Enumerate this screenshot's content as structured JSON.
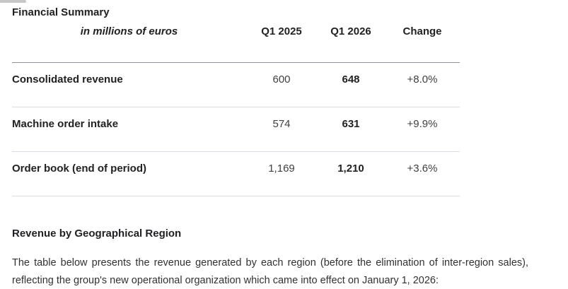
{
  "sections": {
    "financial_summary_title": "Financial Summary",
    "revenue_by_region_title": "Revenue by Geographical Region"
  },
  "table": {
    "unit_label": "in millions of euros",
    "columns": [
      "Q1 2025",
      "Q1 2026",
      "Change"
    ],
    "rows": [
      {
        "label": "Consolidated revenue",
        "q1_2025": "600",
        "q1_2026": "648",
        "change": "+8.0%"
      },
      {
        "label": "Machine order intake",
        "q1_2025": "574",
        "q1_2026": "631",
        "change": "+9.9%"
      },
      {
        "label": "Order book (end of period)",
        "q1_2025": "1,169",
        "q1_2026": "1,210",
        "change": "+3.6%"
      }
    ]
  },
  "paragraph": "The table below presents the revenue generated by each region (before the elimination of inter-region sales), reflecting the group's new operational organization which came into effect on January 1, 2026:",
  "colors": {
    "text_primary": "#202124",
    "text_secondary": "#3c4043",
    "rule_dark": "#8f939b",
    "rule_light": "#d9dce6",
    "strip_gray": "#c7c7c7"
  }
}
